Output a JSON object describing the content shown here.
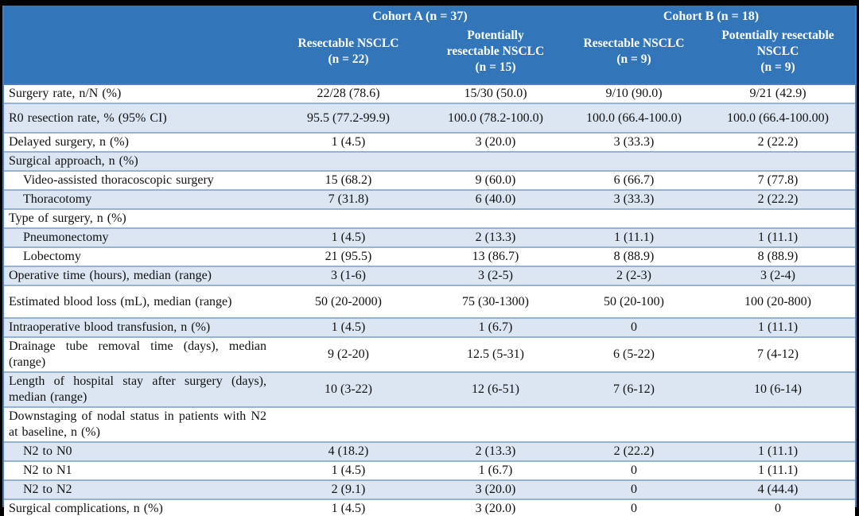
{
  "colors": {
    "headerBg": "#3275b8",
    "band": "#dce6f2",
    "rowLine": "#95b3d7",
    "strongLine": "#4a7ebc",
    "bottomLine": "#2b69ad",
    "headerText": "#ffffff"
  },
  "table": {
    "cohorts": [
      {
        "label": "Cohort A (n = 37)"
      },
      {
        "label": "Cohort B (n = 18)"
      }
    ],
    "columns": [
      {
        "label": "Resectable NSCLC\n(n = 22)"
      },
      {
        "label": "Potentially\nresectable NSCLC\n(n = 15)"
      },
      {
        "label": "Resectable NSCLC\n(n = 9)"
      },
      {
        "label": "Potentially resectable\nNSCLC\n(n = 9)"
      }
    ],
    "rows": [
      {
        "label": "Surgery rate, n/N (%)",
        "indent": false,
        "values": [
          "22/28 (78.6)",
          "15/30 (50.0)",
          "9/10 (90.0)",
          "9/21 (42.9)"
        ]
      },
      {
        "label": "R0 resection rate, % (95% CI)",
        "indent": false,
        "values": [
          "95.5 (77.2-99.9)",
          "100.0 (78.2-100.0)",
          "100.0 (66.4-100.0)",
          "100.0 (66.4-100.00)"
        ]
      },
      {
        "label": "Delayed surgery, n (%)",
        "indent": false,
        "values": [
          "1 (4.5)",
          "3 (20.0)",
          "3 (33.3)",
          "2 (22.2)"
        ]
      },
      {
        "label": "Surgical approach, n (%)",
        "indent": false,
        "values": [
          "",
          "",
          "",
          ""
        ]
      },
      {
        "label": "Video-assisted thoracoscopic surgery",
        "indent": true,
        "values": [
          "15 (68.2)",
          "9 (60.0)",
          "6 (66.7)",
          "7 (77.8)"
        ]
      },
      {
        "label": "Thoracotomy",
        "indent": true,
        "values": [
          "7 (31.8)",
          "6 (40.0)",
          "3 (33.3)",
          "2 (22.2)"
        ]
      },
      {
        "label": "Type of surgery, n (%)",
        "indent": false,
        "values": [
          "",
          "",
          "",
          ""
        ]
      },
      {
        "label": "Pneumonectomy",
        "indent": true,
        "values": [
          "1 (4.5)",
          "2 (13.3)",
          "1 (11.1)",
          "1 (11.1)"
        ]
      },
      {
        "label": "Lobectomy",
        "indent": true,
        "values": [
          "21 (95.5)",
          "13 (86.7)",
          "8 (88.9)",
          "8 (88.9)"
        ]
      },
      {
        "label": "Operative time (hours), median (range)",
        "indent": false,
        "values": [
          "3 (1-6)",
          "3 (2-5)",
          "2 (2-3)",
          "3 (2-4)"
        ]
      },
      {
        "label": "Estimated blood loss (mL), median (range)",
        "indent": false,
        "values": [
          "50 (20-2000)",
          "75 (30-1300)",
          "50 (20-100)",
          "100 (20-800)"
        ]
      },
      {
        "label": "Intraoperative blood transfusion, n (%)",
        "indent": false,
        "values": [
          "1 (4.5)",
          "1 (6.7)",
          "0",
          "1 (11.1)"
        ]
      },
      {
        "label": "Drainage tube removal time (days), median (range)",
        "indent": false,
        "values": [
          "9 (2-20)",
          "12.5 (5-31)",
          "6 (5-22)",
          "7 (4-12)"
        ]
      },
      {
        "label": "Length of hospital stay after surgery (days), median (range)",
        "indent": false,
        "values": [
          "10 (3-22)",
          "12 (6-51)",
          "7 (6-12)",
          "10 (6-14)"
        ]
      },
      {
        "label": "Downstaging of nodal status in patients with N2 at baseline, n (%)",
        "indent": false,
        "values": [
          "",
          "",
          "",
          ""
        ]
      },
      {
        "label": "N2 to N0",
        "indent": true,
        "values": [
          "4 (18.2)",
          "2 (13.3)",
          "2 (22.2)",
          "1 (11.1)"
        ]
      },
      {
        "label": "N2 to N1",
        "indent": true,
        "values": [
          "1 (4.5)",
          "1 (6.7)",
          "0",
          "1 (11.1)"
        ]
      },
      {
        "label": "N2 to N2",
        "indent": true,
        "values": [
          "2 (9.1)",
          "3 (20.0)",
          "0",
          "4 (44.4)"
        ]
      },
      {
        "label": "Surgical complications, n (%)",
        "indent": false,
        "values": [
          "1 (4.5)",
          "3 (20.0)",
          "0",
          "0"
        ]
      }
    ]
  }
}
